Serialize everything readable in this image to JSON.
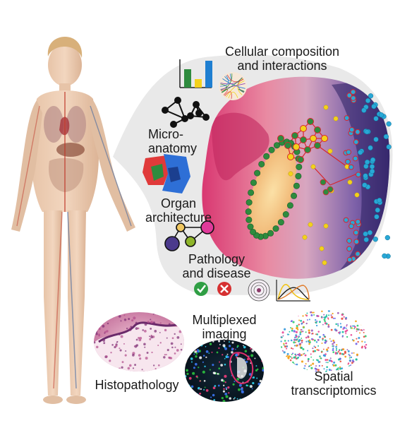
{
  "labels": {
    "cellular": [
      "Cellular composition",
      "and interactions"
    ],
    "microanatomy": [
      "Micro-",
      "anatomy"
    ],
    "organ": [
      "Organ",
      "architecture"
    ],
    "pathology": [
      "Pathology",
      "and disease"
    ],
    "multiplexed": [
      "Multiplexed",
      "imaging"
    ],
    "histopathology": "Histopathology",
    "spatial": [
      "Spatial",
      "transcriptomics"
    ]
  },
  "icons": {
    "bar_chart": "bar-chart-icon",
    "network": "cell-network-icon",
    "organ_map": "organ-map-icon",
    "check": "check-icon",
    "cross": "cross-icon",
    "spiral": "tissue-spiral-icon",
    "curves": "density-curves-icon"
  },
  "colors": {
    "bubble": "#e9e9e9",
    "tissue_magenta": "#d8326e",
    "tissue_purple": "#5b3a8c",
    "nucleus_green": "#2e8b3e",
    "cell_yellow": "#f3d21c",
    "cell_cyan": "#29a8d6",
    "edge_red": "#d7262d",
    "check_green": "#2f9e44",
    "cross_red": "#d63031"
  }
}
